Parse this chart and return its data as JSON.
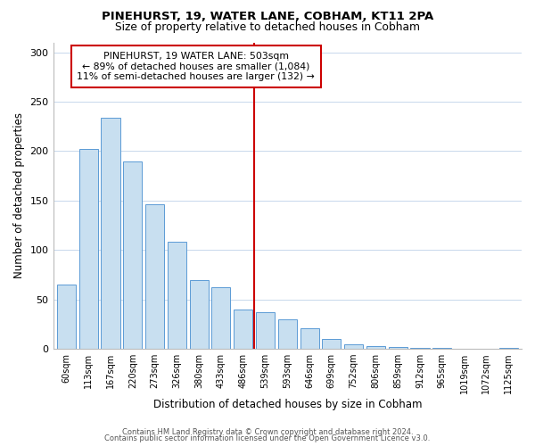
{
  "title": "PINEHURST, 19, WATER LANE, COBHAM, KT11 2PA",
  "subtitle": "Size of property relative to detached houses in Cobham",
  "xlabel": "Distribution of detached houses by size in Cobham",
  "ylabel": "Number of detached properties",
  "bar_labels": [
    "60sqm",
    "113sqm",
    "167sqm",
    "220sqm",
    "273sqm",
    "326sqm",
    "380sqm",
    "433sqm",
    "486sqm",
    "539sqm",
    "593sqm",
    "646sqm",
    "699sqm",
    "752sqm",
    "806sqm",
    "859sqm",
    "912sqm",
    "965sqm",
    "1019sqm",
    "1072sqm",
    "1125sqm"
  ],
  "bar_values": [
    65,
    202,
    234,
    190,
    146,
    108,
    70,
    62,
    40,
    37,
    30,
    21,
    10,
    5,
    3,
    2,
    1,
    1,
    0,
    0,
    1
  ],
  "bar_color": "#c8dff0",
  "bar_edge_color": "#5b9bd5",
  "vline_x": 8.5,
  "vline_color": "#cc0000",
  "annotation_title": "PINEHURST, 19 WATER LANE: 503sqm",
  "annotation_line1": "← 89% of detached houses are smaller (1,084)",
  "annotation_line2": "11% of semi-detached houses are larger (132) →",
  "annotation_box_edge": "#cc0000",
  "ylim": [
    0,
    310
  ],
  "yticks": [
    0,
    50,
    100,
    150,
    200,
    250,
    300
  ],
  "footer1": "Contains HM Land Registry data © Crown copyright and database right 2024.",
  "footer2": "Contains public sector information licensed under the Open Government Licence v3.0."
}
